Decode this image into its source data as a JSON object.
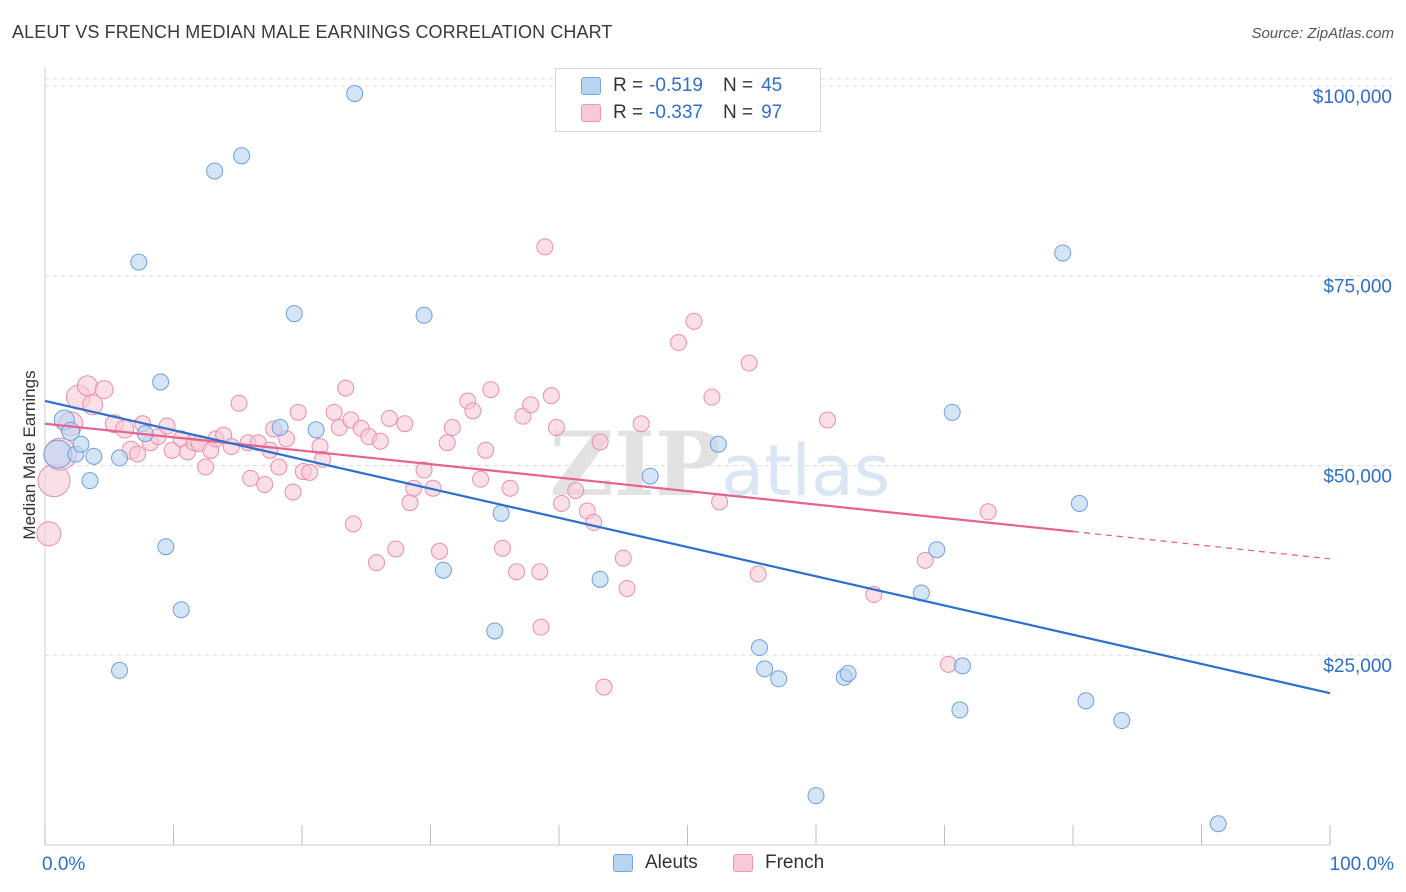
{
  "title": "ALEUT VS FRENCH MEDIAN MALE EARNINGS CORRELATION CHART",
  "source": "Source: ZipAtlas.com",
  "watermark": "ZIPatlas",
  "legend": {
    "rows": [
      {
        "r_label": "R =",
        "r_value": "-0.519",
        "n_label": "N =",
        "n_value": "45"
      },
      {
        "r_label": "R =",
        "r_value": "-0.337",
        "n_label": "N =",
        "n_value": "97"
      }
    ]
  },
  "bottom_legend": [
    "Aleuts",
    "French"
  ],
  "colors": {
    "aleut_fill": "#b9d3f3",
    "aleut_stroke": "#6f9fdc",
    "aleut_line": "#2b6fd1",
    "french_fill": "#f8c9d7",
    "french_stroke": "#e88fab",
    "french_line": "#e5638e",
    "axis_text": "#2f6fcc",
    "grid": "#dddddd"
  },
  "chart_data": {
    "type": "scatter",
    "title": "ALEUT VS FRENCH MEDIAN MALE EARNINGS CORRELATION CHART",
    "xlabel": "",
    "ylabel": "Median Male Earnings",
    "xlim": [
      0,
      100
    ],
    "ylim": [
      0,
      102500
    ],
    "x_tick_labels": [
      "0.0%",
      "100.0%"
    ],
    "y_ticks": [
      25000,
      50000,
      75000,
      100000
    ],
    "y_tick_labels": [
      "$25,000",
      "$50,000",
      "$75,000",
      "$100,000"
    ],
    "grid": true,
    "legend_position": "top-center",
    "series": [
      {
        "name": "Aleuts",
        "r": -0.519,
        "n": 45,
        "trend": {
          "x": [
            0,
            100
          ],
          "y": [
            58500,
            20000
          ]
        },
        "points": [
          [
            1.0,
            51500,
            14
          ],
          [
            1.5,
            56000,
            10
          ],
          [
            2.0,
            54500,
            9
          ],
          [
            2.4,
            51500,
            8
          ],
          [
            2.8,
            52800,
            8
          ],
          [
            3.5,
            48000,
            8
          ],
          [
            3.8,
            51200,
            8
          ],
          [
            5.8,
            51000,
            8
          ],
          [
            5.8,
            23000,
            8
          ],
          [
            7.3,
            76800,
            8
          ],
          [
            7.8,
            54200,
            8
          ],
          [
            9.0,
            61000,
            8
          ],
          [
            9.4,
            39300,
            8
          ],
          [
            10.6,
            31000,
            8
          ],
          [
            13.2,
            88800,
            8
          ],
          [
            15.3,
            90800,
            8
          ],
          [
            18.3,
            55000,
            8
          ],
          [
            19.4,
            70000,
            8
          ],
          [
            21.1,
            54700,
            8
          ],
          [
            24.1,
            99000,
            8
          ],
          [
            29.5,
            69800,
            8
          ],
          [
            31.0,
            36200,
            8
          ],
          [
            35.0,
            28200,
            8
          ],
          [
            35.5,
            43700,
            8
          ],
          [
            43.2,
            35000,
            8
          ],
          [
            47.1,
            48600,
            8
          ],
          [
            52.4,
            52800,
            8
          ],
          [
            55.6,
            26000,
            8
          ],
          [
            56.0,
            23200,
            8
          ],
          [
            57.1,
            21900,
            8
          ],
          [
            60.0,
            6500,
            8
          ],
          [
            62.2,
            22100,
            8
          ],
          [
            62.5,
            22600,
            8
          ],
          [
            68.2,
            33200,
            8
          ],
          [
            69.4,
            38900,
            8
          ],
          [
            70.6,
            57000,
            8
          ],
          [
            71.2,
            17800,
            8
          ],
          [
            71.4,
            23600,
            8
          ],
          [
            79.2,
            78000,
            8
          ],
          [
            80.5,
            45000,
            8
          ],
          [
            81.0,
            19000,
            8
          ],
          [
            83.8,
            16400,
            8
          ],
          [
            91.3,
            2800,
            8
          ]
        ]
      },
      {
        "name": "French",
        "r": -0.337,
        "n": 97,
        "trend": {
          "x": [
            0,
            80
          ],
          "y": [
            55500,
            41300
          ]
        },
        "trend_dashed": {
          "x": [
            80,
            100
          ],
          "y": [
            41300,
            37700
          ]
        },
        "points": [
          [
            0.3,
            41000,
            12
          ],
          [
            0.7,
            48000,
            16
          ],
          [
            1.2,
            51500,
            16
          ],
          [
            2.0,
            55500,
            12
          ],
          [
            2.6,
            59000,
            12
          ],
          [
            3.3,
            60500,
            10
          ],
          [
            3.7,
            58000,
            10
          ],
          [
            4.6,
            60000,
            9
          ],
          [
            5.4,
            55500,
            9
          ],
          [
            6.2,
            54800,
            9
          ],
          [
            6.7,
            52000,
            9
          ],
          [
            7.2,
            51500,
            8
          ],
          [
            7.6,
            55500,
            8
          ],
          [
            8.2,
            53000,
            8
          ],
          [
            8.8,
            53800,
            8
          ],
          [
            9.5,
            55200,
            8
          ],
          [
            9.9,
            52000,
            8
          ],
          [
            10.6,
            53500,
            8
          ],
          [
            11.1,
            51800,
            8
          ],
          [
            11.6,
            53000,
            8
          ],
          [
            12.0,
            52900,
            8
          ],
          [
            12.5,
            49800,
            8
          ],
          [
            12.9,
            52000,
            8
          ],
          [
            13.3,
            53500,
            8
          ],
          [
            13.9,
            54000,
            8
          ],
          [
            14.5,
            52500,
            8
          ],
          [
            15.1,
            58200,
            8
          ],
          [
            15.8,
            53000,
            8
          ],
          [
            16.0,
            48300,
            8
          ],
          [
            16.6,
            53000,
            8
          ],
          [
            17.1,
            47500,
            8
          ],
          [
            17.5,
            52000,
            8
          ],
          [
            17.8,
            54800,
            8
          ],
          [
            18.2,
            49800,
            8
          ],
          [
            18.8,
            53500,
            8
          ],
          [
            19.3,
            46500,
            8
          ],
          [
            19.7,
            57000,
            8
          ],
          [
            20.1,
            49200,
            8
          ],
          [
            20.6,
            49100,
            8
          ],
          [
            21.4,
            52500,
            8
          ],
          [
            21.6,
            50800,
            8
          ],
          [
            22.5,
            57000,
            8
          ],
          [
            22.9,
            55000,
            8
          ],
          [
            23.4,
            60200,
            8
          ],
          [
            23.8,
            56000,
            8
          ],
          [
            24.0,
            42300,
            8
          ],
          [
            24.6,
            54900,
            8
          ],
          [
            25.2,
            53800,
            8
          ],
          [
            25.8,
            37200,
            8
          ],
          [
            26.1,
            53200,
            8
          ],
          [
            26.8,
            56200,
            8
          ],
          [
            27.3,
            39000,
            8
          ],
          [
            28.0,
            55500,
            8
          ],
          [
            28.4,
            45100,
            8
          ],
          [
            28.7,
            47000,
            8
          ],
          [
            29.5,
            49400,
            8
          ],
          [
            30.2,
            47000,
            8
          ],
          [
            30.7,
            38700,
            8
          ],
          [
            31.3,
            53000,
            8
          ],
          [
            31.7,
            55000,
            8
          ],
          [
            32.9,
            58500,
            8
          ],
          [
            33.3,
            57200,
            8
          ],
          [
            33.9,
            48200,
            8
          ],
          [
            34.3,
            52000,
            8
          ],
          [
            34.7,
            60000,
            8
          ],
          [
            35.6,
            39100,
            8
          ],
          [
            36.2,
            47000,
            8
          ],
          [
            36.7,
            36000,
            8
          ],
          [
            37.2,
            56500,
            8
          ],
          [
            37.8,
            58000,
            8
          ],
          [
            38.5,
            36000,
            8
          ],
          [
            38.6,
            28700,
            8
          ],
          [
            38.9,
            78800,
            8
          ],
          [
            39.4,
            59200,
            8
          ],
          [
            39.8,
            55000,
            8
          ],
          [
            40.2,
            45000,
            8
          ],
          [
            41.3,
            46700,
            8
          ],
          [
            42.2,
            44000,
            8
          ],
          [
            42.7,
            42500,
            8
          ],
          [
            43.2,
            53100,
            8
          ],
          [
            43.5,
            20800,
            8
          ],
          [
            45.0,
            37800,
            8
          ],
          [
            45.3,
            33800,
            8
          ],
          [
            46.4,
            55500,
            8
          ],
          [
            49.3,
            66200,
            8
          ],
          [
            50.5,
            69000,
            8
          ],
          [
            51.9,
            59000,
            8
          ],
          [
            52.5,
            45200,
            8
          ],
          [
            54.8,
            63500,
            8
          ],
          [
            55.5,
            35700,
            8
          ],
          [
            60.9,
            56000,
            8
          ],
          [
            64.5,
            33000,
            8
          ],
          [
            68.5,
            37500,
            8
          ],
          [
            70.3,
            23800,
            8
          ],
          [
            73.4,
            43900,
            8
          ]
        ]
      }
    ]
  }
}
